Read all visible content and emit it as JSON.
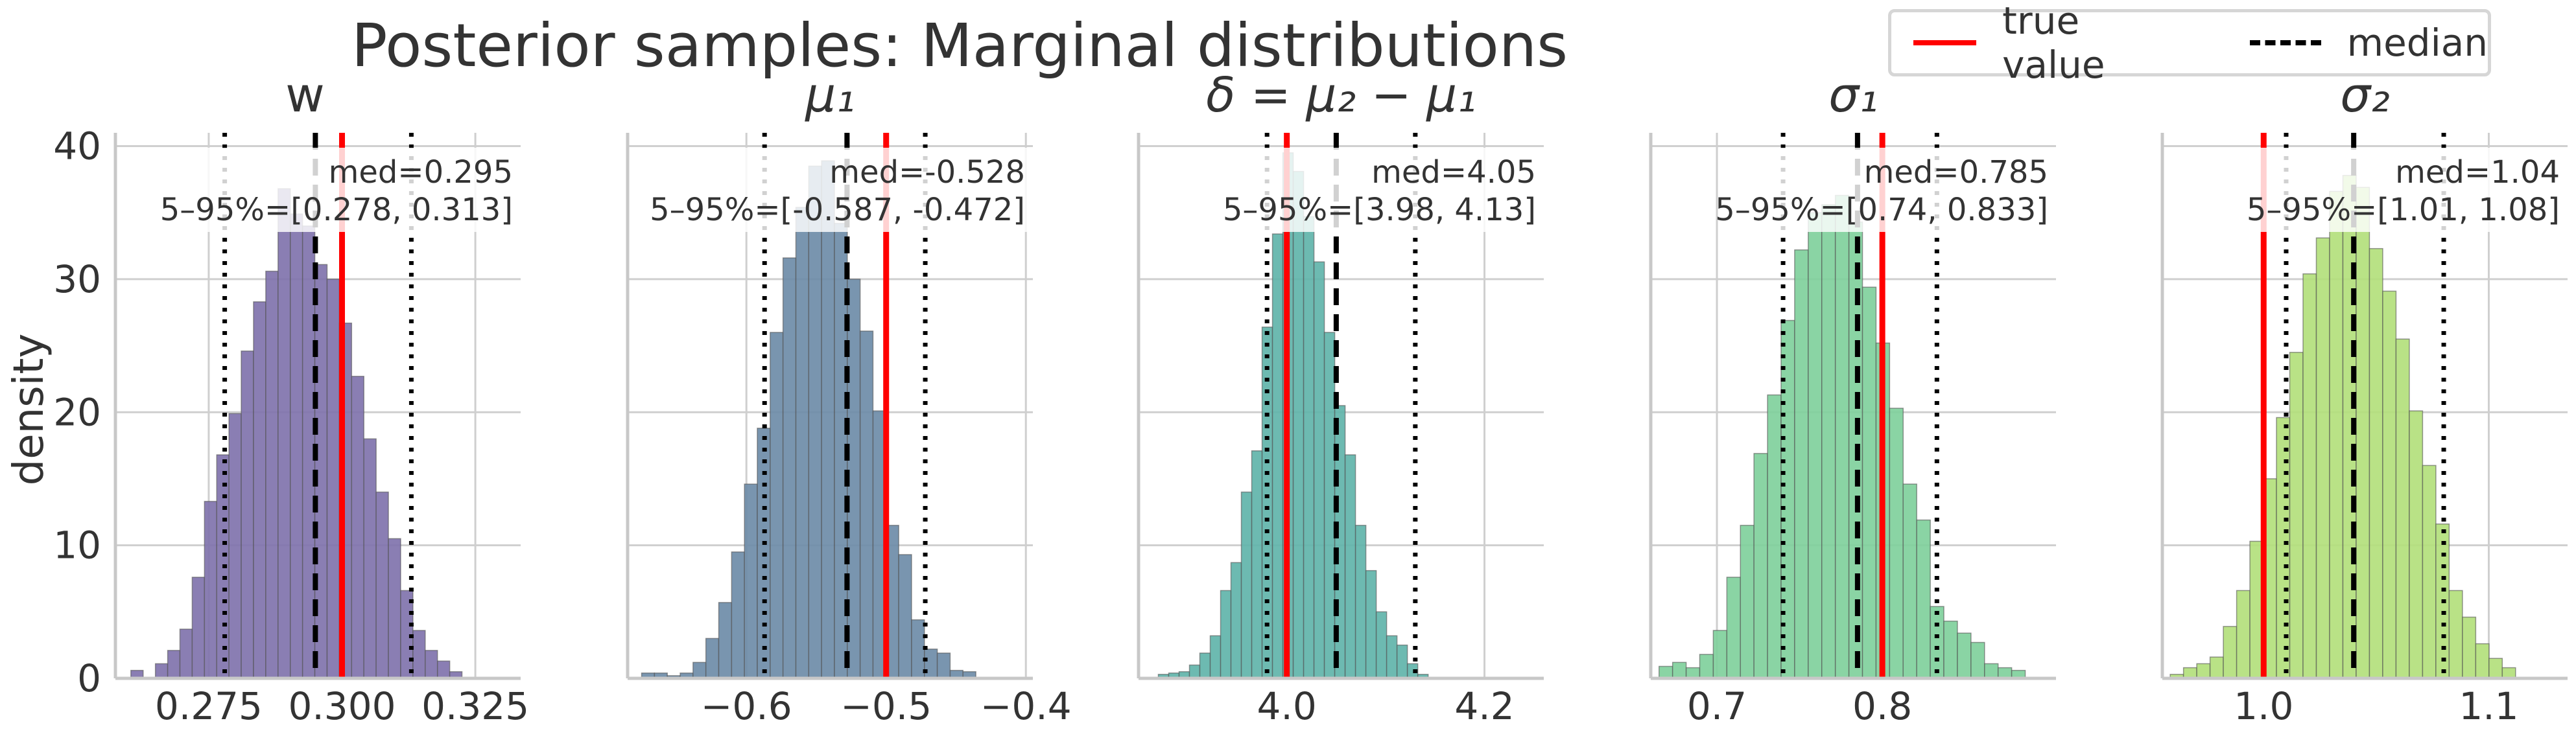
{
  "chart_data": {
    "title": "Posterior samples: Marginal distributions",
    "ylabel": "density",
    "legend": {
      "placement": "top-right",
      "entries": [
        {
          "label": "true value",
          "color": "#ff0000",
          "style": "solid"
        },
        {
          "label": "median",
          "color": "#000000",
          "style": "dashed"
        }
      ]
    },
    "panels": [
      {
        "type": "histogram",
        "title": "w",
        "color": "#7d70ab",
        "xlim": [
          0.2575,
          0.3335
        ],
        "ylim": [
          0,
          41
        ],
        "xticks": [
          0.275,
          0.3,
          0.325
        ],
        "xtick_labels": [
          "0.275",
          "0.300",
          "0.325"
        ],
        "yticks": [
          0,
          10,
          20,
          30,
          40
        ],
        "ytick_labels": [
          "0",
          "10",
          "20",
          "30",
          "40"
        ],
        "bin_start": 0.2604,
        "bin_width": 0.0023,
        "heights": [
          0.6,
          0,
          1.1,
          2.1,
          3.7,
          7.6,
          13.3,
          16.8,
          19.9,
          24.6,
          28.3,
          30.6,
          36.8,
          34.9,
          34.0,
          31.1,
          30.0,
          26.7,
          22.7,
          18.0,
          14.0,
          10.5,
          6.6,
          3.6,
          2.1,
          1.3,
          0.5
        ],
        "true_value": 0.3,
        "median": 0.295,
        "q05": 0.278,
        "q95": 0.313,
        "annotation_median": "med=0.295",
        "annotation_interval": "5–95%=[0.278, 0.313]"
      },
      {
        "type": "histogram",
        "title": "μ₁",
        "color": "#6a8aa6",
        "xlim": [
          -0.685,
          -0.395
        ],
        "ylim": [
          0,
          41
        ],
        "xticks": [
          -0.6,
          -0.5,
          -0.4
        ],
        "xtick_labels": [
          "−0.6",
          "−0.5",
          "−0.4"
        ],
        "yticks": [
          0,
          10,
          20,
          30,
          40
        ],
        "ytick_labels": [
          "",
          "",
          "",
          "",
          ""
        ],
        "bin_start": -0.675,
        "bin_width": 0.0092,
        "heights": [
          0.4,
          0.4,
          0.2,
          0.4,
          1.2,
          3.0,
          5.7,
          9.5,
          14.6,
          18.8,
          26.0,
          31.6,
          35.4,
          38.5,
          38.9,
          34.2,
          30.0,
          26.1,
          20.1,
          11.5,
          9.3,
          4.4,
          2.2,
          1.9,
          0.6,
          0.5
        ],
        "true_value": -0.5,
        "median": -0.528,
        "q05": -0.587,
        "q95": -0.472,
        "annotation_median": "med=-0.528",
        "annotation_interval": "5–95%=[-0.587, -0.472]"
      },
      {
        "type": "histogram",
        "title": "δ = μ₂ − μ₁",
        "color": "#5db3a8",
        "xlim": [
          3.85,
          4.26
        ],
        "ylim": [
          0,
          41
        ],
        "xticks": [
          4.0,
          4.2
        ],
        "xtick_labels": [
          "4.0",
          "4.2"
        ],
        "yticks": [
          0,
          10,
          20,
          30,
          40
        ],
        "ytick_labels": [
          "",
          "",
          "",
          "",
          ""
        ],
        "bin_start": 3.87,
        "bin_width": 0.0105,
        "heights": [
          0.3,
          0.4,
          0.5,
          1.0,
          1.9,
          3.2,
          6.6,
          8.7,
          14.0,
          17.1,
          26.4,
          33.4,
          39.5,
          38.1,
          34.7,
          31.3,
          26.0,
          20.5,
          16.8,
          11.5,
          8.1,
          5.0,
          3.2,
          2.5,
          1.1,
          0.3
        ],
        "true_value": 4.0,
        "median": 4.05,
        "q05": 3.98,
        "q95": 4.13,
        "annotation_median": "med=4.05",
        "annotation_interval": "5–95%=[3.98, 4.13]"
      },
      {
        "type": "histogram",
        "title": "σ₁",
        "color": "#7dcf9a",
        "xlim": [
          0.66,
          0.905
        ],
        "ylim": [
          0,
          41
        ],
        "xticks": [
          0.7,
          0.8
        ],
        "xtick_labels": [
          "0.7",
          "0.8"
        ],
        "yticks": [
          0,
          10,
          20,
          30,
          40
        ],
        "ytick_labels": [
          "",
          "",
          "",
          "",
          ""
        ],
        "bin_start": 0.665,
        "bin_width": 0.0082,
        "heights": [
          0.9,
          1.2,
          0.8,
          1.8,
          3.6,
          7.6,
          11.5,
          16.9,
          21.3,
          26.9,
          32.2,
          35.0,
          35.6,
          36.3,
          34.3,
          29.4,
          25.2,
          20.3,
          14.6,
          11.9,
          5.4,
          4.3,
          3.4,
          2.7,
          1.1,
          0.8,
          0.6
        ],
        "true_value": 0.8,
        "median": 0.785,
        "q05": 0.74,
        "q95": 0.833,
        "annotation_median": "med=0.785",
        "annotation_interval": "5–95%=[0.74, 0.833]"
      },
      {
        "type": "histogram",
        "title": "σ₂",
        "color": "#b1df79",
        "xlim": [
          0.955,
          1.135
        ],
        "ylim": [
          0,
          41
        ],
        "xticks": [
          1.0,
          1.1
        ],
        "xtick_labels": [
          "1.0",
          "1.1"
        ],
        "yticks": [
          0,
          10,
          20,
          30,
          40
        ],
        "ytick_labels": [
          "",
          "",
          "",
          "",
          ""
        ],
        "bin_start": 0.9585,
        "bin_width": 0.0059,
        "heights": [
          0.3,
          0.8,
          1.1,
          1.6,
          3.9,
          6.6,
          10.3,
          15.0,
          19.6,
          24.5,
          30.4,
          33.1,
          36.6,
          37.8,
          36.9,
          32.3,
          29.1,
          25.5,
          20.1,
          16.0,
          11.6,
          6.6,
          4.6,
          2.6,
          1.5,
          0.8
        ],
        "true_value": 1.0,
        "median": 1.04,
        "q05": 1.01,
        "q95": 1.08,
        "annotation_median": "med=1.04",
        "annotation_interval": "5–95%=[1.01, 1.08]"
      }
    ]
  }
}
